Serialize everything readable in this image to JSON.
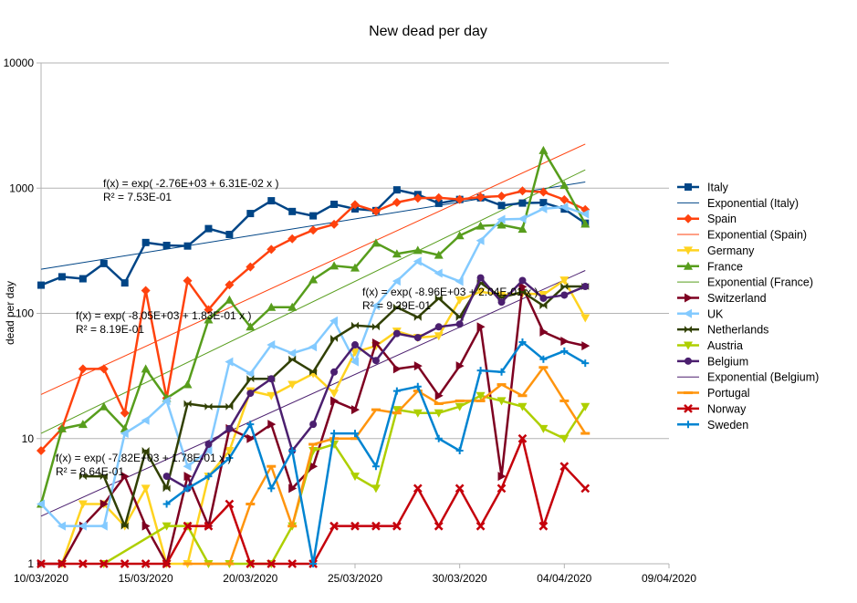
{
  "chart_data": {
    "type": "line",
    "title": "New dead per day",
    "xlabel": "",
    "ylabel": "dead per day",
    "y_scale": "log",
    "ylim": [
      1,
      10000
    ],
    "y_ticks": [
      "1",
      "10",
      "100",
      "1000",
      "10000"
    ],
    "x_range": [
      "2020-03-10",
      "2020-04-09"
    ],
    "x_ticks": [
      "10/03/2020",
      "15/03/2020",
      "20/03/2020",
      "25/03/2020",
      "30/03/2020",
      "04/04/2020",
      "09/04/2020"
    ],
    "grid": "horizontal",
    "legend_position": "right",
    "series": [
      {
        "name": "Italy",
        "color": "#004586",
        "marker": "square",
        "x": [
          "2020-03-10",
          "2020-03-11",
          "2020-03-12",
          "2020-03-13",
          "2020-03-14",
          "2020-03-15",
          "2020-03-16",
          "2020-03-17",
          "2020-03-18",
          "2020-03-19",
          "2020-03-20",
          "2020-03-21",
          "2020-03-22",
          "2020-03-23",
          "2020-03-24",
          "2020-03-25",
          "2020-03-26",
          "2020-03-27",
          "2020-03-28",
          "2020-03-29",
          "2020-03-30",
          "2020-03-31",
          "2020-04-01",
          "2020-04-02",
          "2020-04-03",
          "2020-04-04",
          "2020-04-05"
        ],
        "y": [
          168,
          196,
          189,
          250,
          175,
          368,
          349,
          345,
          475,
          427,
          627,
          793,
          651,
          601,
          743,
          683,
          662,
          969,
          889,
          756,
          812,
          837,
          727,
          760,
          766,
          681,
          525
        ]
      },
      {
        "name": "Spain",
        "color": "#ff420e",
        "marker": "diamond",
        "x": [
          "2020-03-10",
          "2020-03-11",
          "2020-03-12",
          "2020-03-13",
          "2020-03-14",
          "2020-03-15",
          "2020-03-16",
          "2020-03-17",
          "2020-03-18",
          "2020-03-19",
          "2020-03-20",
          "2020-03-21",
          "2020-03-22",
          "2020-03-23",
          "2020-03-24",
          "2020-03-25",
          "2020-03-26",
          "2020-03-27",
          "2020-03-28",
          "2020-03-29",
          "2020-03-30",
          "2020-03-31",
          "2020-04-01",
          "2020-04-02",
          "2020-04-03",
          "2020-04-04",
          "2020-04-05"
        ],
        "y": [
          8,
          12,
          36,
          36,
          16,
          152,
          21,
          182,
          107,
          169,
          235,
          324,
          394,
          462,
          514,
          738,
          655,
          769,
          832,
          838,
          812,
          849,
          864,
          950,
          932,
          809,
          674
        ]
      },
      {
        "name": "Germany",
        "color": "#ffd320",
        "marker": "triangle-down",
        "x": [
          "2020-03-11",
          "2020-03-12",
          "2020-03-13",
          "2020-03-14",
          "2020-03-15",
          "2020-03-16",
          "2020-03-17",
          "2020-03-18",
          "2020-03-19",
          "2020-03-20",
          "2020-03-21",
          "2020-03-22",
          "2020-03-23",
          "2020-03-24",
          "2020-03-25",
          "2020-03-26",
          "2020-03-27",
          "2020-03-28",
          "2020-03-29",
          "2020-03-30",
          "2020-03-31",
          "2020-04-01",
          "2020-04-02",
          "2020-04-03",
          "2020-04-04",
          "2020-04-05"
        ],
        "y": [
          1,
          3,
          3,
          2,
          4,
          1,
          1,
          5,
          8,
          24,
          22,
          27,
          33,
          23,
          49,
          55,
          72,
          64,
          66,
          128,
          149,
          140,
          145,
          141,
          184,
          92
        ]
      },
      {
        "name": "France",
        "color": "#579d1c",
        "marker": "triangle-up",
        "x": [
          "2020-03-10",
          "2020-03-11",
          "2020-03-12",
          "2020-03-13",
          "2020-03-14",
          "2020-03-15",
          "2020-03-16",
          "2020-03-17",
          "2020-03-18",
          "2020-03-19",
          "2020-03-20",
          "2020-03-21",
          "2020-03-22",
          "2020-03-23",
          "2020-03-24",
          "2020-03-25",
          "2020-03-26",
          "2020-03-27",
          "2020-03-28",
          "2020-03-29",
          "2020-03-30",
          "2020-03-31",
          "2020-04-01",
          "2020-04-02",
          "2020-04-03",
          "2020-04-04",
          "2020-04-05"
        ],
        "y": [
          3,
          12,
          13,
          18,
          12,
          36,
          21,
          27,
          89,
          128,
          78,
          112,
          112,
          186,
          240,
          231,
          365,
          299,
          319,
          292,
          418,
          499,
          509,
          471,
          2004,
          1053,
          518
        ]
      },
      {
        "name": "Switzerland",
        "color": "#7e0021",
        "marker": "triangle-right",
        "x": [
          "2020-03-10",
          "2020-03-11",
          "2020-03-12",
          "2020-03-13",
          "2020-03-14",
          "2020-03-15",
          "2020-03-16",
          "2020-03-17",
          "2020-03-18",
          "2020-03-19",
          "2020-03-20",
          "2020-03-21",
          "2020-03-22",
          "2020-03-23",
          "2020-03-24",
          "2020-03-25",
          "2020-03-26",
          "2020-03-27",
          "2020-03-28",
          "2020-03-29",
          "2020-03-30",
          "2020-03-31",
          "2020-04-01",
          "2020-04-02",
          "2020-04-03",
          "2020-04-04",
          "2020-04-05"
        ],
        "y": [
          1,
          1,
          2,
          3,
          5,
          2,
          1,
          5,
          2,
          12,
          10,
          13,
          4,
          6,
          20,
          17,
          58,
          36,
          38,
          22,
          38,
          78,
          5,
          163,
          71,
          60,
          55
        ]
      },
      {
        "name": "UK",
        "color": "#83caff",
        "marker": "triangle-left",
        "x": [
          "2020-03-10",
          "2020-03-11",
          "2020-03-12",
          "2020-03-13",
          "2020-03-14",
          "2020-03-15",
          "2020-03-16",
          "2020-03-17",
          "2020-03-18",
          "2020-03-19",
          "2020-03-20",
          "2020-03-21",
          "2020-03-22",
          "2020-03-23",
          "2020-03-24",
          "2020-03-25",
          "2020-03-26",
          "2020-03-27",
          "2020-03-28",
          "2020-03-29",
          "2020-03-30",
          "2020-03-31",
          "2020-04-01",
          "2020-04-02",
          "2020-04-03",
          "2020-04-04",
          "2020-04-05"
        ],
        "y": [
          3,
          2,
          2,
          2,
          11,
          14,
          20,
          6,
          8,
          41,
          33,
          56,
          48,
          54,
          87,
          41,
          115,
          181,
          260,
          209,
          180,
          381,
          563,
          569,
          684,
          708,
          621
        ]
      },
      {
        "name": "Netherlands",
        "color": "#314004",
        "marker": "bowtie",
        "x": [
          "2020-03-12",
          "2020-03-13",
          "2020-03-14",
          "2020-03-15",
          "2020-03-16",
          "2020-03-17",
          "2020-03-18",
          "2020-03-19",
          "2020-03-20",
          "2020-03-21",
          "2020-03-22",
          "2020-03-23",
          "2020-03-24",
          "2020-03-25",
          "2020-03-26",
          "2020-03-27",
          "2020-03-28",
          "2020-03-29",
          "2020-03-30",
          "2020-03-31",
          "2020-04-01",
          "2020-04-02",
          "2020-04-03",
          "2020-04-04",
          "2020-04-05"
        ],
        "y": [
          5,
          5,
          2,
          8,
          4,
          19,
          18,
          18,
          30,
          30,
          43,
          34,
          63,
          80,
          78,
          112,
          93,
          132,
          93,
          175,
          134,
          148,
          115,
          164,
          164
        ]
      },
      {
        "name": "Austria",
        "color": "#aecf00",
        "marker": "triangle-down",
        "x": [
          "2020-03-13",
          "2020-03-16",
          "2020-03-17",
          "2020-03-18",
          "2020-03-19",
          "2020-03-20",
          "2020-03-21",
          "2020-03-22",
          "2020-03-23",
          "2020-03-24",
          "2020-03-25",
          "2020-03-26",
          "2020-03-27",
          "2020-03-28",
          "2020-03-29",
          "2020-03-30",
          "2020-03-31",
          "2020-04-01",
          "2020-04-02",
          "2020-04-03",
          "2020-04-04",
          "2020-04-05"
        ],
        "y": [
          1,
          2,
          2,
          1,
          1,
          1,
          1,
          2,
          8,
          9,
          5,
          4,
          17,
          16,
          16,
          18,
          22,
          20,
          18,
          12,
          10,
          18
        ]
      },
      {
        "name": "Belgium",
        "color": "#4b1f6f",
        "marker": "circle",
        "x": [
          "2020-03-16",
          "2020-03-17",
          "2020-03-18",
          "2020-03-19",
          "2020-03-20",
          "2020-03-21",
          "2020-03-22",
          "2020-03-23",
          "2020-03-24",
          "2020-03-25",
          "2020-03-26",
          "2020-03-27",
          "2020-03-28",
          "2020-03-29",
          "2020-03-30",
          "2020-03-31",
          "2020-04-01",
          "2020-04-02",
          "2020-04-03",
          "2020-04-04",
          "2020-04-05"
        ],
        "y": [
          5,
          4,
          9,
          12,
          23,
          30,
          8,
          13,
          34,
          56,
          42,
          69,
          64,
          78,
          82,
          192,
          123,
          183,
          132,
          140,
          164
        ]
      },
      {
        "name": "Portugal",
        "color": "#ff950e",
        "marker": "dash",
        "x": [
          "2020-03-17",
          "2020-03-18",
          "2020-03-19",
          "2020-03-20",
          "2020-03-21",
          "2020-03-22",
          "2020-03-23",
          "2020-03-24",
          "2020-03-25",
          "2020-03-26",
          "2020-03-27",
          "2020-03-28",
          "2020-03-29",
          "2020-03-30",
          "2020-03-31",
          "2020-04-01",
          "2020-04-02",
          "2020-04-03",
          "2020-04-04",
          "2020-04-05"
        ],
        "y": [
          1,
          1,
          1,
          3,
          6,
          2,
          9,
          10,
          10,
          17,
          16,
          24,
          19,
          20,
          20,
          27,
          22,
          37,
          20,
          11
        ]
      },
      {
        "name": "Norway",
        "color": "#c5000b",
        "marker": "x",
        "x": [
          "2020-03-10",
          "2020-03-11",
          "2020-03-12",
          "2020-03-13",
          "2020-03-14",
          "2020-03-15",
          "2020-03-16",
          "2020-03-17",
          "2020-03-18",
          "2020-03-19",
          "2020-03-20",
          "2020-03-21",
          "2020-03-22",
          "2020-03-23",
          "2020-03-24",
          "2020-03-25",
          "2020-03-26",
          "2020-03-27",
          "2020-03-28",
          "2020-03-29",
          "2020-03-30",
          "2020-03-31",
          "2020-04-01",
          "2020-04-02",
          "2020-04-03",
          "2020-04-04",
          "2020-04-05"
        ],
        "y": [
          1,
          1,
          1,
          1,
          1,
          1,
          1,
          2,
          2,
          3,
          1,
          1,
          1,
          1,
          2,
          2,
          2,
          2,
          4,
          2,
          4,
          2,
          4,
          10,
          2,
          6,
          4
        ]
      },
      {
        "name": "Sweden",
        "color": "#0084d1",
        "marker": "plus",
        "x": [
          "2020-03-16",
          "2020-03-17",
          "2020-03-18",
          "2020-03-19",
          "2020-03-20",
          "2020-03-21",
          "2020-03-22",
          "2020-03-23",
          "2020-03-24",
          "2020-03-25",
          "2020-03-26",
          "2020-03-27",
          "2020-03-28",
          "2020-03-29",
          "2020-03-30",
          "2020-03-31",
          "2020-04-01",
          "2020-04-02",
          "2020-04-03",
          "2020-04-04",
          "2020-04-05"
        ],
        "y": [
          3,
          4,
          5,
          7,
          13,
          4,
          8,
          1,
          11,
          11,
          6,
          24,
          26,
          10,
          8,
          35,
          34,
          59,
          43,
          50,
          40
        ]
      }
    ],
    "trendlines": [
      {
        "name": "Exponential (Italy)",
        "color": "#004586",
        "x": [
          "2020-03-10",
          "2020-04-05"
        ],
        "y": [
          225,
          1120
        ]
      },
      {
        "name": "Exponential (Spain)",
        "color": "#ff420e",
        "x": [
          "2020-03-10",
          "2020-04-05"
        ],
        "y": [
          22.5,
          2250
        ]
      },
      {
        "name": "Exponential (France)",
        "color": "#579d1c",
        "x": [
          "2020-03-10",
          "2020-04-05"
        ],
        "y": [
          11,
          1400
        ]
      },
      {
        "name": "Exponential (Belgium)",
        "color": "#4b1f6f",
        "x": [
          "2020-03-10",
          "2020-04-05"
        ],
        "y": [
          2.4,
          220
        ]
      }
    ],
    "annotations": [
      {
        "line1": "f(x) = exp( -2.76E+03 + 6.31E-02 x )",
        "line2": "R² = 7.53E-01"
      },
      {
        "line1": "f(x) = exp( -8.05E+03 + 1.83E-01 x )",
        "line2": "R² = 8.19E-01"
      },
      {
        "line1": "f(x) = exp( -8.96E+03 + 2.04E-01 x )",
        "line2": "R² = 9.29E-01"
      },
      {
        "line1": "f(x) = exp( -7.82E+03 + 1.78E-01 x )",
        "line2": "R² = 8.64E-01"
      }
    ],
    "legend": [
      "Italy",
      "Exponential (Italy)",
      "Spain",
      "Exponential (Spain)",
      "Germany",
      "France",
      "Exponential (France)",
      "Switzerland",
      "UK",
      "Netherlands",
      "Austria",
      "Belgium",
      "Exponential (Belgium)",
      "Portugal",
      "Norway",
      "Sweden"
    ]
  }
}
